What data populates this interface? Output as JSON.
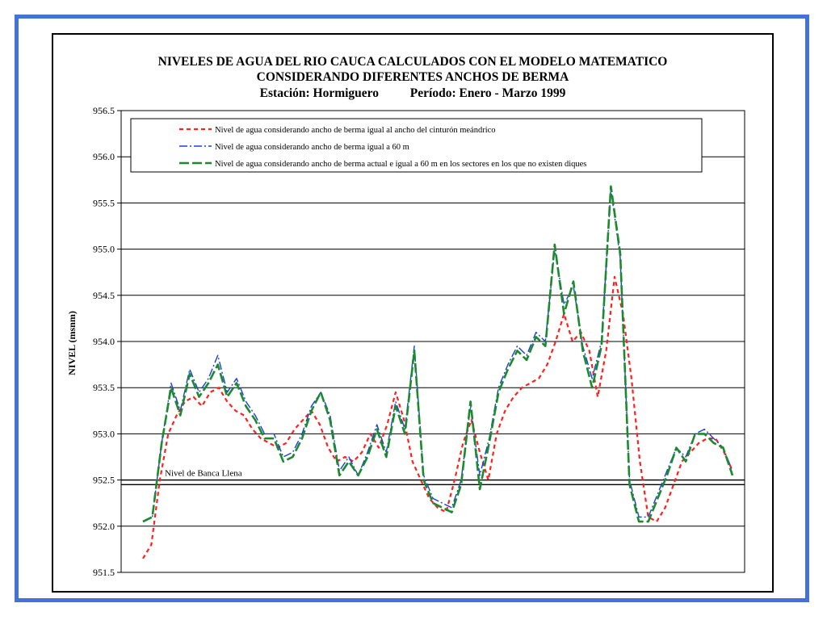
{
  "chart_data": {
    "type": "line",
    "title": [
      "NIVELES DE AGUA DEL RIO CAUCA CALCULADOS CON EL MODELO MATEMATICO",
      "CONSIDERANDO DIFERENTES ANCHOS DE BERMA",
      "Estación: Hormiguero          Período: Enero - Marzo 1999"
    ],
    "ylabel": "NIVEL (msnm)",
    "xlabel": "",
    "ylim": [
      951.5,
      956.5
    ],
    "yticks": [
      "951.5",
      "952.0",
      "952.5",
      "953.0",
      "953.5",
      "954.0",
      "954.5",
      "955.0",
      "955.5",
      "956.0",
      "956.5"
    ],
    "grid": true,
    "legend_position": "top",
    "reference_lines": [
      {
        "label": "Nivel de Banca Llena",
        "values": [
          952.45,
          952.5
        ]
      }
    ],
    "series": [
      {
        "name": "Nivel de agua considerando ancho de berma igual al ancho del cinturón meándrico",
        "color": "#ff2020",
        "dash": "5,4",
        "values": [
          951.65,
          951.8,
          952.5,
          953.0,
          953.2,
          953.35,
          953.4,
          953.3,
          953.45,
          953.5,
          953.35,
          953.25,
          953.2,
          953.05,
          952.95,
          952.9,
          952.85,
          952.9,
          953.05,
          953.15,
          953.25,
          953.1,
          952.85,
          952.7,
          952.75,
          952.7,
          952.8,
          953.0,
          952.85,
          953.1,
          953.45,
          953.15,
          952.7,
          952.5,
          952.3,
          952.2,
          952.15,
          952.5,
          952.9,
          953.15,
          952.8,
          952.5,
          953.0,
          953.25,
          953.4,
          953.5,
          953.55,
          953.6,
          953.75,
          954.0,
          954.3,
          954.0,
          954.1,
          953.9,
          953.4,
          953.9,
          954.7,
          954.3,
          953.6,
          952.7,
          952.1,
          952.05,
          952.2,
          952.45,
          952.7,
          952.8,
          952.9,
          952.95,
          952.95,
          952.8,
          952.6
        ]
      },
      {
        "name": "Nivel de agua considerando ancho de berma igual a 60 m",
        "color": "#1a3ee0",
        "dash": "10,3,2,3",
        "values": [
          952.05,
          952.1,
          952.9,
          953.55,
          953.25,
          953.7,
          953.45,
          953.6,
          953.85,
          953.45,
          953.6,
          953.35,
          953.2,
          953.0,
          953.0,
          952.75,
          952.8,
          953.0,
          953.3,
          953.45,
          953.2,
          952.6,
          952.75,
          952.55,
          952.8,
          953.1,
          952.8,
          953.35,
          953.05,
          953.95,
          952.55,
          952.3,
          952.25,
          952.2,
          952.5,
          953.3,
          952.55,
          952.95,
          953.5,
          953.75,
          953.95,
          953.85,
          954.1,
          954.0,
          955.0,
          954.4,
          954.6,
          953.95,
          953.6,
          954.0,
          955.65,
          954.9,
          952.5,
          952.1,
          952.1,
          952.35,
          952.6,
          952.85,
          952.75,
          953.0,
          953.05,
          952.95,
          952.85,
          952.6
        ]
      },
      {
        "name": "Nivel de agua considerando ancho de berma actual e igual a 60 m en los sectores en los que no existen diques",
        "color": "#1b8a2e",
        "dash": "12,4",
        "values": [
          952.05,
          952.1,
          952.9,
          953.5,
          953.2,
          953.65,
          953.4,
          953.55,
          953.75,
          953.4,
          953.55,
          953.3,
          953.15,
          952.95,
          952.95,
          952.7,
          952.75,
          952.95,
          953.25,
          953.45,
          953.15,
          952.55,
          952.7,
          952.55,
          952.75,
          953.05,
          952.75,
          953.3,
          953.0,
          953.9,
          952.5,
          952.25,
          952.2,
          952.15,
          952.45,
          953.35,
          952.4,
          952.9,
          953.45,
          953.7,
          953.9,
          953.8,
          954.05,
          953.95,
          955.05,
          954.3,
          954.65,
          953.9,
          953.5,
          953.95,
          955.68,
          954.95,
          952.45,
          952.05,
          952.05,
          952.3,
          952.55,
          952.85,
          952.7,
          953.0,
          953.0,
          952.9,
          952.85,
          952.55
        ]
      }
    ]
  }
}
